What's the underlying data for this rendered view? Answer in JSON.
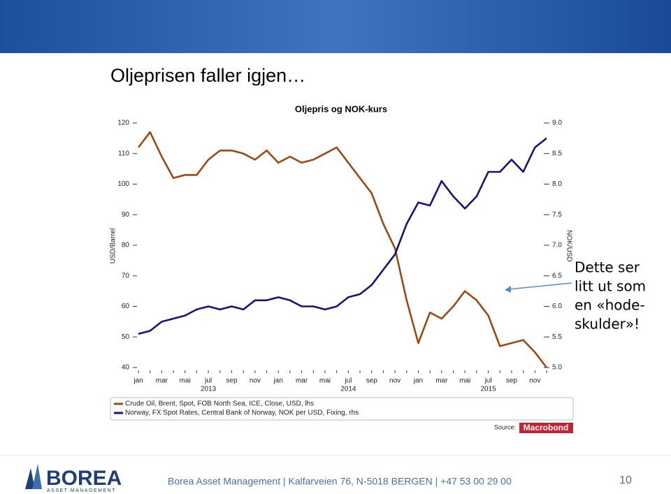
{
  "slide_title": "Oljeprisen faller igjen…",
  "annotation": [
    "Dette ser",
    "litt ut som",
    "en «hode-",
    "skulder»!"
  ],
  "footer": {
    "logo": "BOREA",
    "logo_sub": "ASSET MANAGEMENT",
    "text": "Borea Asset Management | Kalfarveien 76, N-5018 BERGEN | +47 53 00 29 00",
    "page": "10"
  },
  "chart_data": {
    "type": "line",
    "title": "Oljepris og NOK-kurs",
    "ylabel": "USD/Barrel",
    "y2label": "NOK/USD",
    "categories": [
      "jan",
      null,
      "mar",
      null,
      "mai",
      null,
      "jul",
      null,
      "sep",
      null,
      "nov",
      null,
      "jan",
      null,
      "mar",
      null,
      "mai",
      null,
      "jul",
      null,
      "sep",
      null,
      "nov",
      null,
      "jan",
      null,
      "mar",
      null,
      "mai",
      null,
      "jul",
      null,
      "sep",
      null,
      "nov",
      null
    ],
    "years": [
      "2013",
      "2014",
      "2015"
    ],
    "ylim": [
      40,
      120
    ],
    "yticks": [
      40,
      50,
      60,
      70,
      80,
      90,
      100,
      110,
      120
    ],
    "y2lim": [
      5,
      9
    ],
    "y2ticks": [
      {
        "value": 5,
        "label": "5.0"
      },
      5.5,
      {
        "value": 6,
        "label": "6.0"
      },
      6.5,
      {
        "value": 7,
        "label": "7.0"
      },
      7.5,
      {
        "value": 8,
        "label": "8.0"
      },
      8.5,
      {
        "value": 9,
        "label": "9.0"
      }
    ],
    "series": [
      {
        "name": "Crude Oil, Brent, Spot, FOB North Sea, ICE, Close, USD, lhs",
        "color": "#9a4a12",
        "values": [
          112,
          117,
          109,
          102,
          103,
          103,
          108,
          111,
          111,
          110,
          108,
          111,
          107,
          109,
          107,
          108,
          110,
          112,
          107,
          102,
          97,
          87,
          79,
          62,
          48,
          58,
          56,
          60,
          65,
          62,
          57,
          47,
          48,
          49,
          45,
          40
        ]
      },
      {
        "name": "Norway, FX Spot Rates, Central Bank of Norway, NOK per USD, Fixing, rhs",
        "color": "#14147a",
        "axis": "y2",
        "values": [
          5.55,
          5.6,
          5.75,
          5.8,
          5.85,
          5.95,
          6.0,
          5.95,
          6.0,
          5.95,
          6.1,
          6.1,
          6.15,
          6.1,
          6.0,
          6.0,
          5.95,
          6.0,
          6.15,
          6.2,
          6.35,
          6.6,
          6.85,
          7.35,
          7.7,
          7.65,
          8.05,
          7.8,
          7.6,
          7.8,
          8.2,
          8.2,
          8.4,
          8.2,
          8.6,
          8.75
        ]
      }
    ],
    "source_label": "Source:",
    "source": "Macrobond"
  }
}
